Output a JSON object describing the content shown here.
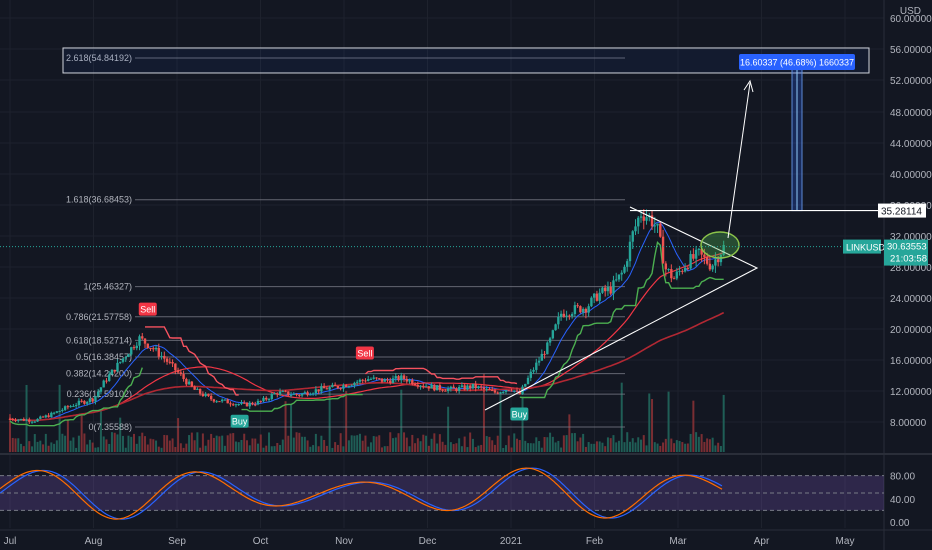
{
  "chart_data": {
    "type": "candlestick",
    "symbol": "LINKUSD",
    "currency": "USD",
    "y_axis_labels": [
      "60.00000",
      "56.00000",
      "52.00000",
      "48.00000",
      "44.00000",
      "40.00000",
      "36.00000",
      "32.00000",
      "28.00000",
      "24.00000",
      "20.00000",
      "16.00000",
      "12.00000",
      "8.00000"
    ],
    "y_ticks": [
      60,
      56,
      52,
      48,
      44,
      40,
      36,
      32,
      28,
      24,
      20,
      16,
      12,
      8
    ],
    "x_axis_labels": [
      "Jul",
      "Aug",
      "Sep",
      "Oct",
      "Nov",
      "Dec",
      "2021",
      "Feb",
      "Mar",
      "Apr",
      "May"
    ],
    "price_label": {
      "symbol": "LINKUSD",
      "price": "30.63553",
      "countdown": "21:03:58",
      "value": 30.63553
    },
    "level_label": {
      "text": "35.28114",
      "value": 35.28114
    },
    "measure_label": "16.60337 (46.68%) 1660337",
    "fib_levels": [
      {
        "label": "2.618(54.84192)",
        "value": 54.84192
      },
      {
        "label": "1.618(36.68453)",
        "value": 36.68453
      },
      {
        "label": "1(25.46327)",
        "value": 25.46327
      },
      {
        "label": "0.786(21.57758)",
        "value": 21.57758
      },
      {
        "label": "0.618(18.52714)",
        "value": 18.52714
      },
      {
        "label": "0.5(16.38457)",
        "value": 16.38457
      },
      {
        "label": "0.382(14.24200)",
        "value": 14.242
      },
      {
        "label": "0.236(11.59102)",
        "value": 11.59102
      },
      {
        "label": "0(7.35588)",
        "value": 7.35588
      }
    ],
    "signals": [
      {
        "type": "Sell",
        "month_pos": 1.65
      },
      {
        "type": "Buy",
        "month_pos": 2.75
      },
      {
        "type": "Sell",
        "month_pos": 4.25
      },
      {
        "type": "Buy",
        "month_pos": 6.1
      }
    ],
    "oscillator": {
      "labels": [
        "80.00",
        "40.00",
        "0.00"
      ],
      "values": [
        80,
        40,
        0
      ],
      "upper_band": 80,
      "lower_band": 20
    },
    "price_path": [
      [
        0.0,
        8.4
      ],
      [
        0.3,
        8.2
      ],
      [
        0.5,
        9.0
      ],
      [
        0.75,
        10.2
      ],
      [
        1.0,
        11.0
      ],
      [
        1.15,
        13.5
      ],
      [
        1.3,
        15.5
      ],
      [
        1.45,
        17.5
      ],
      [
        1.55,
        18.8
      ],
      [
        1.7,
        17.6
      ],
      [
        1.85,
        16.2
      ],
      [
        2.0,
        14.5
      ],
      [
        2.2,
        12.2
      ],
      [
        2.4,
        11.0
      ],
      [
        2.6,
        10.6
      ],
      [
        2.8,
        10.2
      ],
      [
        3.0,
        10.6
      ],
      [
        3.2,
        11.8
      ],
      [
        3.45,
        11.5
      ],
      [
        3.7,
        12.2
      ],
      [
        3.95,
        12.6
      ],
      [
        4.15,
        13.2
      ],
      [
        4.3,
        13.6
      ],
      [
        4.5,
        13.3
      ],
      [
        4.7,
        13.7
      ],
      [
        4.9,
        12.9
      ],
      [
        5.1,
        12.4
      ],
      [
        5.3,
        12.2
      ],
      [
        5.55,
        12.6
      ],
      [
        5.8,
        11.8
      ],
      [
        6.0,
        12.4
      ],
      [
        6.1,
        11.5
      ],
      [
        6.25,
        14.5
      ],
      [
        6.45,
        18.0
      ],
      [
        6.6,
        22.0
      ],
      [
        6.75,
        22.5
      ],
      [
        6.9,
        22.8
      ],
      [
        7.05,
        24.5
      ],
      [
        7.2,
        25.2
      ],
      [
        7.35,
        27.5
      ],
      [
        7.45,
        32.0
      ],
      [
        7.55,
        35.0
      ],
      [
        7.65,
        34.5
      ],
      [
        7.75,
        33.0
      ],
      [
        7.85,
        27.8
      ],
      [
        7.95,
        26.5
      ],
      [
        8.1,
        28.5
      ],
      [
        8.25,
        29.6
      ],
      [
        8.4,
        28.2
      ],
      [
        8.55,
        30.6
      ]
    ]
  }
}
